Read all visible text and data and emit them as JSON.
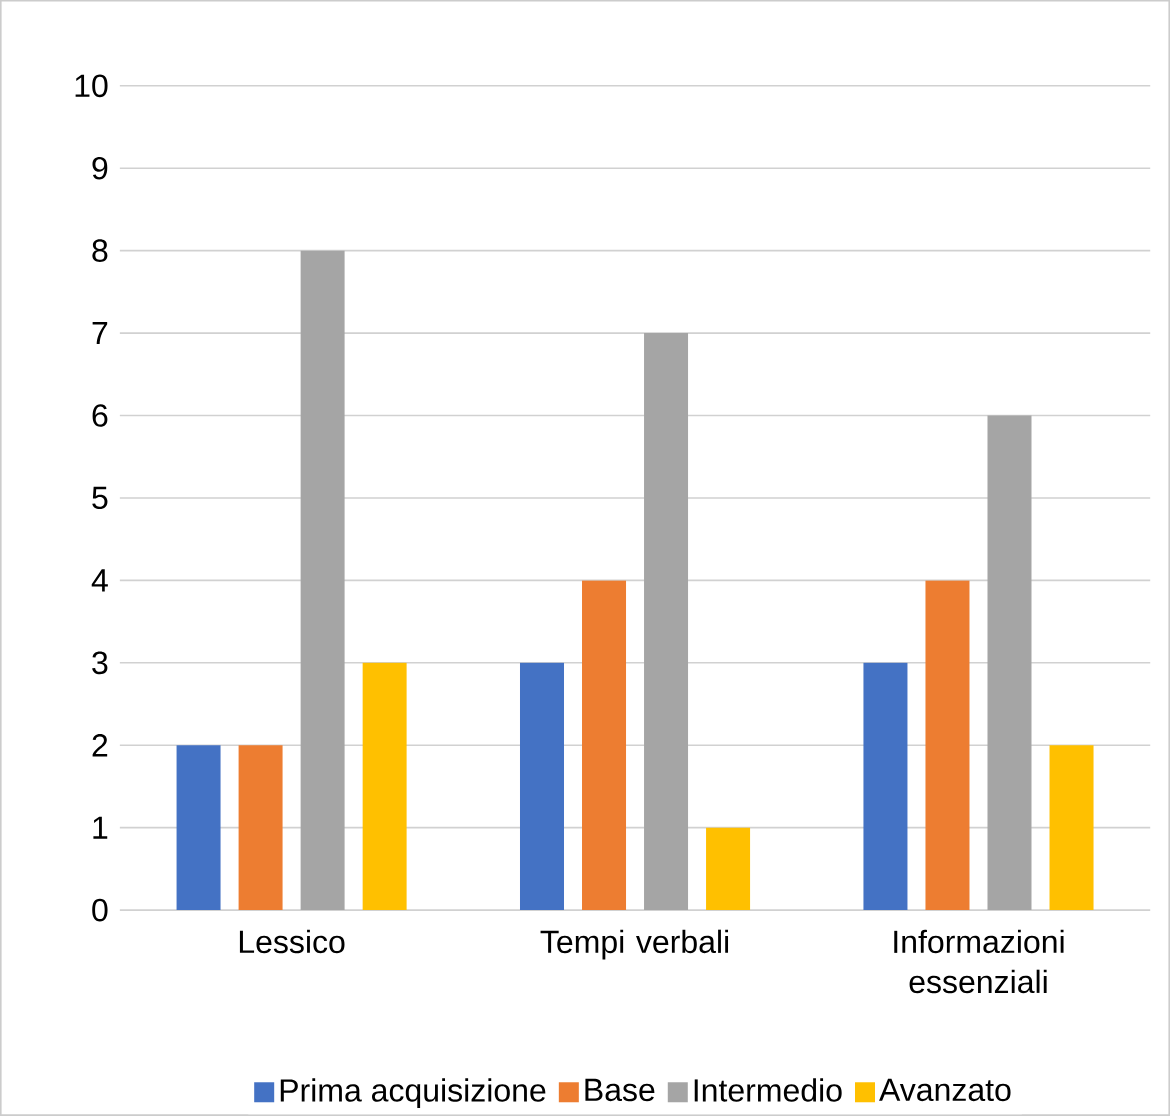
{
  "chart_data": {
    "type": "bar",
    "categories": [
      "Lessico",
      "Tempi verbali",
      "Informazioni essenziali"
    ],
    "series": [
      {
        "name": "Prima acquisizione",
        "color": "#4472c4",
        "values": [
          2,
          3,
          3
        ]
      },
      {
        "name": "Base",
        "color": "#ed7d31",
        "values": [
          2,
          4,
          4
        ]
      },
      {
        "name": "Intermedio",
        "color": "#a5a5a5",
        "values": [
          8,
          7,
          6
        ]
      },
      {
        "name": "Avanzato",
        "color": "#ffc000",
        "values": [
          3,
          1,
          2
        ]
      }
    ],
    "ylim": [
      0,
      10
    ],
    "yticks": [
      0,
      1,
      2,
      3,
      4,
      5,
      6,
      7,
      8,
      9,
      10
    ],
    "grid": "y",
    "legend": "bottom"
  }
}
